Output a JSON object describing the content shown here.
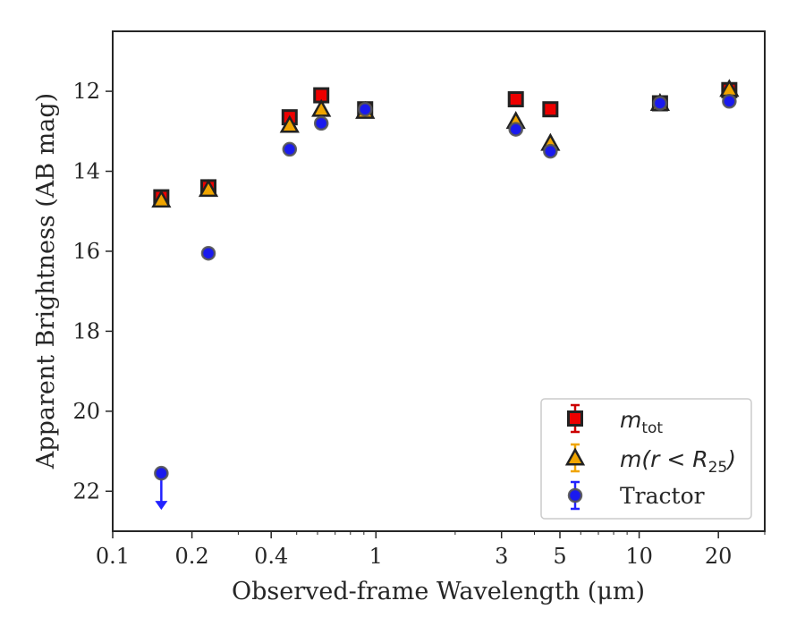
{
  "chart_data": {
    "type": "scatter",
    "xlabel": "Observed-frame Wavelength (μm)",
    "ylabel": "Apparent Brightness (AB mag)",
    "xscale": "log",
    "xlim": [
      0.1,
      30
    ],
    "ylim": [
      23,
      10.5
    ],
    "y_inverted": true,
    "x_ticks": [
      {
        "value": 0.1,
        "label": "0.1"
      },
      {
        "value": 0.2,
        "label": "0.2"
      },
      {
        "value": 0.4,
        "label": "0.4"
      },
      {
        "value": 1,
        "label": "1"
      },
      {
        "value": 3,
        "label": "3"
      },
      {
        "value": 5,
        "label": "5"
      },
      {
        "value": 10,
        "label": "10"
      },
      {
        "value": 20,
        "label": "20"
      }
    ],
    "y_ticks": [
      {
        "value": 12,
        "label": "12"
      },
      {
        "value": 14,
        "label": "14"
      },
      {
        "value": 16,
        "label": "16"
      },
      {
        "value": 18,
        "label": "18"
      },
      {
        "value": 20,
        "label": "20"
      },
      {
        "value": 22,
        "label": "22"
      }
    ],
    "grid": false,
    "legend_position": "bottom-right",
    "series": [
      {
        "name": "m_tot",
        "legend_main": "m",
        "legend_sub": "tot",
        "legend_rest": "",
        "marker": "square",
        "color": "#ee0000",
        "errcolor": "#cc0000",
        "points": [
          {
            "x": 0.153,
            "y": 14.65
          },
          {
            "x": 0.231,
            "y": 14.4
          },
          {
            "x": 0.47,
            "y": 12.65
          },
          {
            "x": 0.62,
            "y": 12.1
          },
          {
            "x": 0.91,
            "y": 12.45
          },
          {
            "x": 3.4,
            "y": 12.2
          },
          {
            "x": 4.6,
            "y": 12.45
          },
          {
            "x": 12.0,
            "y": 12.3
          },
          {
            "x": 22.0,
            "y": 11.97
          }
        ]
      },
      {
        "name": "m(r < R_25)",
        "legend_main": "m(r < R",
        "legend_sub": "25",
        "legend_rest": ")",
        "marker": "triangle",
        "color": "#f0a500",
        "errcolor": "#f0a500",
        "points": [
          {
            "x": 0.153,
            "y": 14.72
          },
          {
            "x": 0.231,
            "y": 14.45
          },
          {
            "x": 0.47,
            "y": 12.85
          },
          {
            "x": 0.62,
            "y": 12.45
          },
          {
            "x": 0.91,
            "y": 12.5
          },
          {
            "x": 3.4,
            "y": 12.75
          },
          {
            "x": 4.6,
            "y": 13.3
          },
          {
            "x": 12.0,
            "y": 12.3
          },
          {
            "x": 22.0,
            "y": 11.95
          }
        ]
      },
      {
        "name": "Tractor",
        "legend_main": "Tractor",
        "legend_sub": "",
        "legend_rest": "",
        "marker": "circle",
        "color": "#1a1aee",
        "errcolor": "#2222ff",
        "points": [
          {
            "x": 0.153,
            "y": 21.55,
            "upper_limit": true
          },
          {
            "x": 0.231,
            "y": 16.05
          },
          {
            "x": 0.47,
            "y": 13.45
          },
          {
            "x": 0.62,
            "y": 12.8
          },
          {
            "x": 0.91,
            "y": 12.45
          },
          {
            "x": 3.4,
            "y": 12.95
          },
          {
            "x": 4.6,
            "y": 13.5
          },
          {
            "x": 12.0,
            "y": 12.3
          },
          {
            "x": 22.0,
            "y": 12.25
          }
        ]
      }
    ]
  }
}
